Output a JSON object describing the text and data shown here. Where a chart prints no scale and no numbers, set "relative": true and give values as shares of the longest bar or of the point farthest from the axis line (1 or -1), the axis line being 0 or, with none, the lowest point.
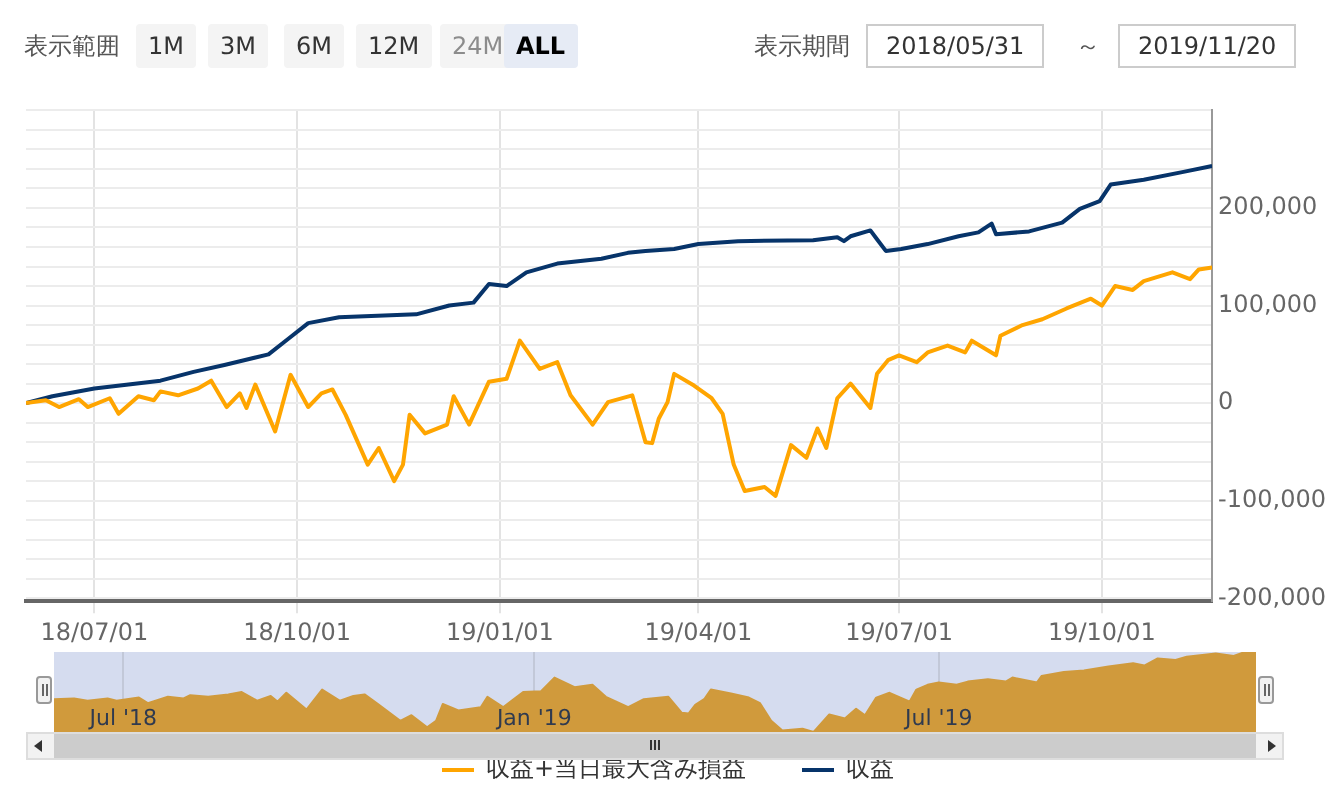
{
  "chart_data": [
    {
      "type": "other",
      "annotations": [
        "表示範囲",
        "1M",
        "3M",
        "6M",
        "12M",
        "24M",
        "ALL",
        "表示期間",
        "2018/05/31",
        "～",
        "2019/11/20"
      ]
    },
    {
      "type": "line",
      "legend": "bottom",
      "grid": true,
      "xlim": [
        "2018-05-31",
        "2019-11-20"
      ],
      "ylim": [
        -203000,
        300000
      ],
      "xticks": [
        {
          "value": "2018-07-01",
          "label": "18/07/01"
        },
        {
          "value": "2018-10-01",
          "label": "18/10/01"
        },
        {
          "value": "2019-01-01",
          "label": "19/01/01"
        },
        {
          "value": "2019-04-01",
          "label": "19/04/01"
        },
        {
          "value": "2019-07-01",
          "label": "19/07/01"
        },
        {
          "value": "2019-10-01",
          "label": "19/10/01"
        }
      ],
      "yticks": [
        {
          "value": -200000,
          "label": "-200,000"
        },
        {
          "value": -180000,
          "label": null
        },
        {
          "value": -160000,
          "label": null
        },
        {
          "value": -140000,
          "label": null
        },
        {
          "value": -120000,
          "label": null
        },
        {
          "value": -100000,
          "label": "-100,000"
        },
        {
          "value": -80000,
          "label": null
        },
        {
          "value": -60000,
          "label": null
        },
        {
          "value": -40000,
          "label": null
        },
        {
          "value": -20000,
          "label": null
        },
        0,
        {
          "value": 20000,
          "label": null
        },
        {
          "value": 40000,
          "label": null
        },
        {
          "value": 60000,
          "label": null
        },
        {
          "value": 80000,
          "label": null
        },
        {
          "value": 100000,
          "label": "100,000"
        },
        {
          "value": 120000,
          "label": null
        },
        {
          "value": 140000,
          "label": null
        },
        {
          "value": 160000,
          "label": null
        },
        {
          "value": 180000,
          "label": null
        },
        {
          "value": 200000,
          "label": "200,000"
        },
        {
          "value": 220000,
          "label": null
        },
        {
          "value": 240000,
          "label": null
        },
        {
          "value": 260000,
          "label": null
        },
        {
          "value": 280000,
          "label": null
        },
        {
          "value": 300000,
          "label": null
        }
      ],
      "series": [
        {
          "name": "収益+当日最大含み損益",
          "color": "#ffa500",
          "x": [
            "2018-05-31",
            "2018-06-09",
            "2018-06-15",
            "2018-06-24",
            "2018-06-28",
            "2018-07-08",
            "2018-07-12",
            "2018-07-21",
            "2018-07-28",
            "2018-07-31",
            "2018-08-08",
            "2018-08-17",
            "2018-08-23",
            "2018-08-30",
            "2018-09-05",
            "2018-09-08",
            "2018-09-12",
            "2018-09-21",
            "2018-09-28",
            "2018-10-06",
            "2018-10-12",
            "2018-10-17",
            "2018-10-23",
            "2018-11-02",
            "2018-11-07",
            "2018-11-14",
            "2018-11-18",
            "2018-11-21",
            "2018-11-28",
            "2018-12-08",
            "2018-12-11",
            "2018-12-18",
            "2018-12-27",
            "2019-01-04",
            "2019-01-10",
            "2019-01-19",
            "2019-01-27",
            "2019-02-02",
            "2019-02-12",
            "2019-02-19",
            "2019-03-02",
            "2019-03-08",
            "2019-03-11",
            "2019-03-14",
            "2019-03-18",
            "2019-03-21",
            "2019-03-30",
            "2019-04-07",
            "2019-04-12",
            "2019-04-17",
            "2019-04-22",
            "2019-05-01",
            "2019-05-06",
            "2019-05-13",
            "2019-05-20",
            "2019-05-25",
            "2019-05-29",
            "2019-06-03",
            "2019-06-09",
            "2019-06-18",
            "2019-06-21",
            "2019-06-26",
            "2019-07-01",
            "2019-07-09",
            "2019-07-14",
            "2019-07-23",
            "2019-07-31",
            "2019-08-03",
            "2019-08-14",
            "2019-08-16",
            "2019-08-26",
            "2019-09-04",
            "2019-09-15",
            "2019-09-26",
            "2019-10-01",
            "2019-10-07",
            "2019-10-15",
            "2019-10-20",
            "2019-11-02",
            "2019-11-10",
            "2019-11-14",
            "2019-11-20"
          ],
          "values": [
            0,
            3000,
            -4000,
            4000,
            -4000,
            5000,
            -11000,
            7000,
            3000,
            12000,
            8000,
            15000,
            23000,
            -4000,
            10000,
            -5000,
            19000,
            -29000,
            29000,
            -4000,
            10000,
            14000,
            -12000,
            -63000,
            -46000,
            -80000,
            -63000,
            -12000,
            -31000,
            -22000,
            7000,
            -22000,
            22000,
            25000,
            64000,
            35000,
            42000,
            8000,
            -22000,
            1000,
            8000,
            -40000,
            -41000,
            -16000,
            1000,
            30000,
            18000,
            5000,
            -11000,
            -63000,
            -90000,
            -86000,
            -95000,
            -43000,
            -56000,
            -26000,
            -46000,
            5000,
            20000,
            -5000,
            30000,
            44000,
            49000,
            42000,
            52000,
            59000,
            52000,
            64000,
            49000,
            69000,
            80000,
            86000,
            97000,
            107000,
            100000,
            120000,
            116000,
            125000,
            134000,
            127000,
            137000,
            139000
          ]
        },
        {
          "name": "収益",
          "color": "#07346a",
          "x": [
            "2018-05-31",
            "2018-06-12",
            "2018-07-01",
            "2018-07-31",
            "2018-08-15",
            "2018-08-29",
            "2018-09-18",
            "2018-09-27",
            "2018-10-06",
            "2018-10-20",
            "2018-11-24",
            "2018-12-09",
            "2018-12-20",
            "2018-12-27",
            "2019-01-04",
            "2019-01-13",
            "2019-01-27",
            "2019-02-16",
            "2019-02-28",
            "2019-03-08",
            "2019-03-21",
            "2019-04-01",
            "2019-04-19",
            "2019-05-23",
            "2019-06-03",
            "2019-06-06",
            "2019-06-09",
            "2019-06-18",
            "2019-06-21",
            "2019-06-25",
            "2019-07-02",
            "2019-07-14",
            "2019-07-28",
            "2019-08-06",
            "2019-08-12",
            "2019-08-14",
            "2019-08-29",
            "2019-09-13",
            "2019-09-21",
            "2019-09-30",
            "2019-10-05",
            "2019-10-20",
            "2019-11-07",
            "2019-11-20"
          ],
          "values": [
            0,
            7000,
            15000,
            23000,
            32000,
            39000,
            50000,
            66000,
            82000,
            88000,
            91000,
            100000,
            103000,
            122000,
            120000,
            134000,
            143000,
            148000,
            154000,
            156000,
            158000,
            163000,
            166000,
            167000,
            170000,
            166000,
            171000,
            177000,
            168000,
            156000,
            158000,
            163000,
            171000,
            175000,
            184000,
            173000,
            176000,
            185000,
            199000,
            207000,
            224000,
            229000,
            237000,
            243000
          ]
        }
      ]
    },
    {
      "type": "area",
      "tick_labels": "x",
      "grid": "x",
      "relative": true,
      "xlim": [
        "2018-05-31",
        "2019-11-20"
      ],
      "xticks": [
        {
          "value": "2018-07-01",
          "label": "Jul '18"
        },
        {
          "value": "2019-01-01",
          "label": "Jan '19"
        },
        {
          "value": "2019-07-01",
          "label": "Jul '19"
        }
      ],
      "series": [
        {
          "color": "#d09a3c",
          "x": [
            "2018-05-31",
            "2018-06-09",
            "2018-06-15",
            "2018-06-24",
            "2018-06-28",
            "2018-07-08",
            "2018-07-12",
            "2018-07-21",
            "2018-07-28",
            "2018-07-31",
            "2018-08-08",
            "2018-08-17",
            "2018-08-23",
            "2018-08-30",
            "2018-09-05",
            "2018-09-08",
            "2018-09-12",
            "2018-09-21",
            "2018-09-28",
            "2018-10-06",
            "2018-10-12",
            "2018-10-17",
            "2018-10-23",
            "2018-11-02",
            "2018-11-07",
            "2018-11-14",
            "2018-11-18",
            "2018-11-21",
            "2018-11-28",
            "2018-12-08",
            "2018-12-11",
            "2018-12-18",
            "2018-12-27",
            "2019-01-04",
            "2019-01-10",
            "2019-01-19",
            "2019-01-27",
            "2019-02-02",
            "2019-02-12",
            "2019-02-19",
            "2019-03-02",
            "2019-03-08",
            "2019-03-11",
            "2019-03-14",
            "2019-03-18",
            "2019-03-21",
            "2019-03-30",
            "2019-04-07",
            "2019-04-12",
            "2019-04-17",
            "2019-04-22",
            "2019-05-01",
            "2019-05-06",
            "2019-05-13",
            "2019-05-20",
            "2019-05-25",
            "2019-05-29",
            "2019-06-03",
            "2019-06-09",
            "2019-06-18",
            "2019-06-21",
            "2019-06-26",
            "2019-07-01",
            "2019-07-09",
            "2019-07-14",
            "2019-07-23",
            "2019-07-31",
            "2019-08-03",
            "2019-08-14",
            "2019-08-16",
            "2019-08-26",
            "2019-09-04",
            "2019-09-15",
            "2019-09-26",
            "2019-10-01",
            "2019-10-07",
            "2019-10-15",
            "2019-10-20",
            "2019-11-02",
            "2019-11-10",
            "2019-11-14",
            "2019-11-20"
          ],
          "values": [
            0.41,
            0.42,
            0.39,
            0.42,
            0.39,
            0.43,
            0.36,
            0.44,
            0.42,
            0.46,
            0.44,
            0.47,
            0.5,
            0.39,
            0.45,
            0.38,
            0.49,
            0.28,
            0.53,
            0.39,
            0.45,
            0.47,
            0.35,
            0.14,
            0.21,
            0.06,
            0.14,
            0.35,
            0.27,
            0.31,
            0.44,
            0.31,
            0.5,
            0.51,
            0.68,
            0.56,
            0.59,
            0.44,
            0.31,
            0.41,
            0.44,
            0.24,
            0.23,
            0.34,
            0.41,
            0.53,
            0.48,
            0.43,
            0.36,
            0.14,
            0.02,
            0.04,
            0,
            0.22,
            0.17,
            0.29,
            0.21,
            0.43,
            0.49,
            0.38,
            0.53,
            0.59,
            0.62,
            0.59,
            0.63,
            0.66,
            0.63,
            0.68,
            0.62,
            0.7,
            0.75,
            0.77,
            0.82,
            0.86,
            0.83,
            0.92,
            0.9,
            0.94,
            0.98,
            0.95,
            0.99,
            1
          ]
        }
      ]
    }
  ]
}
